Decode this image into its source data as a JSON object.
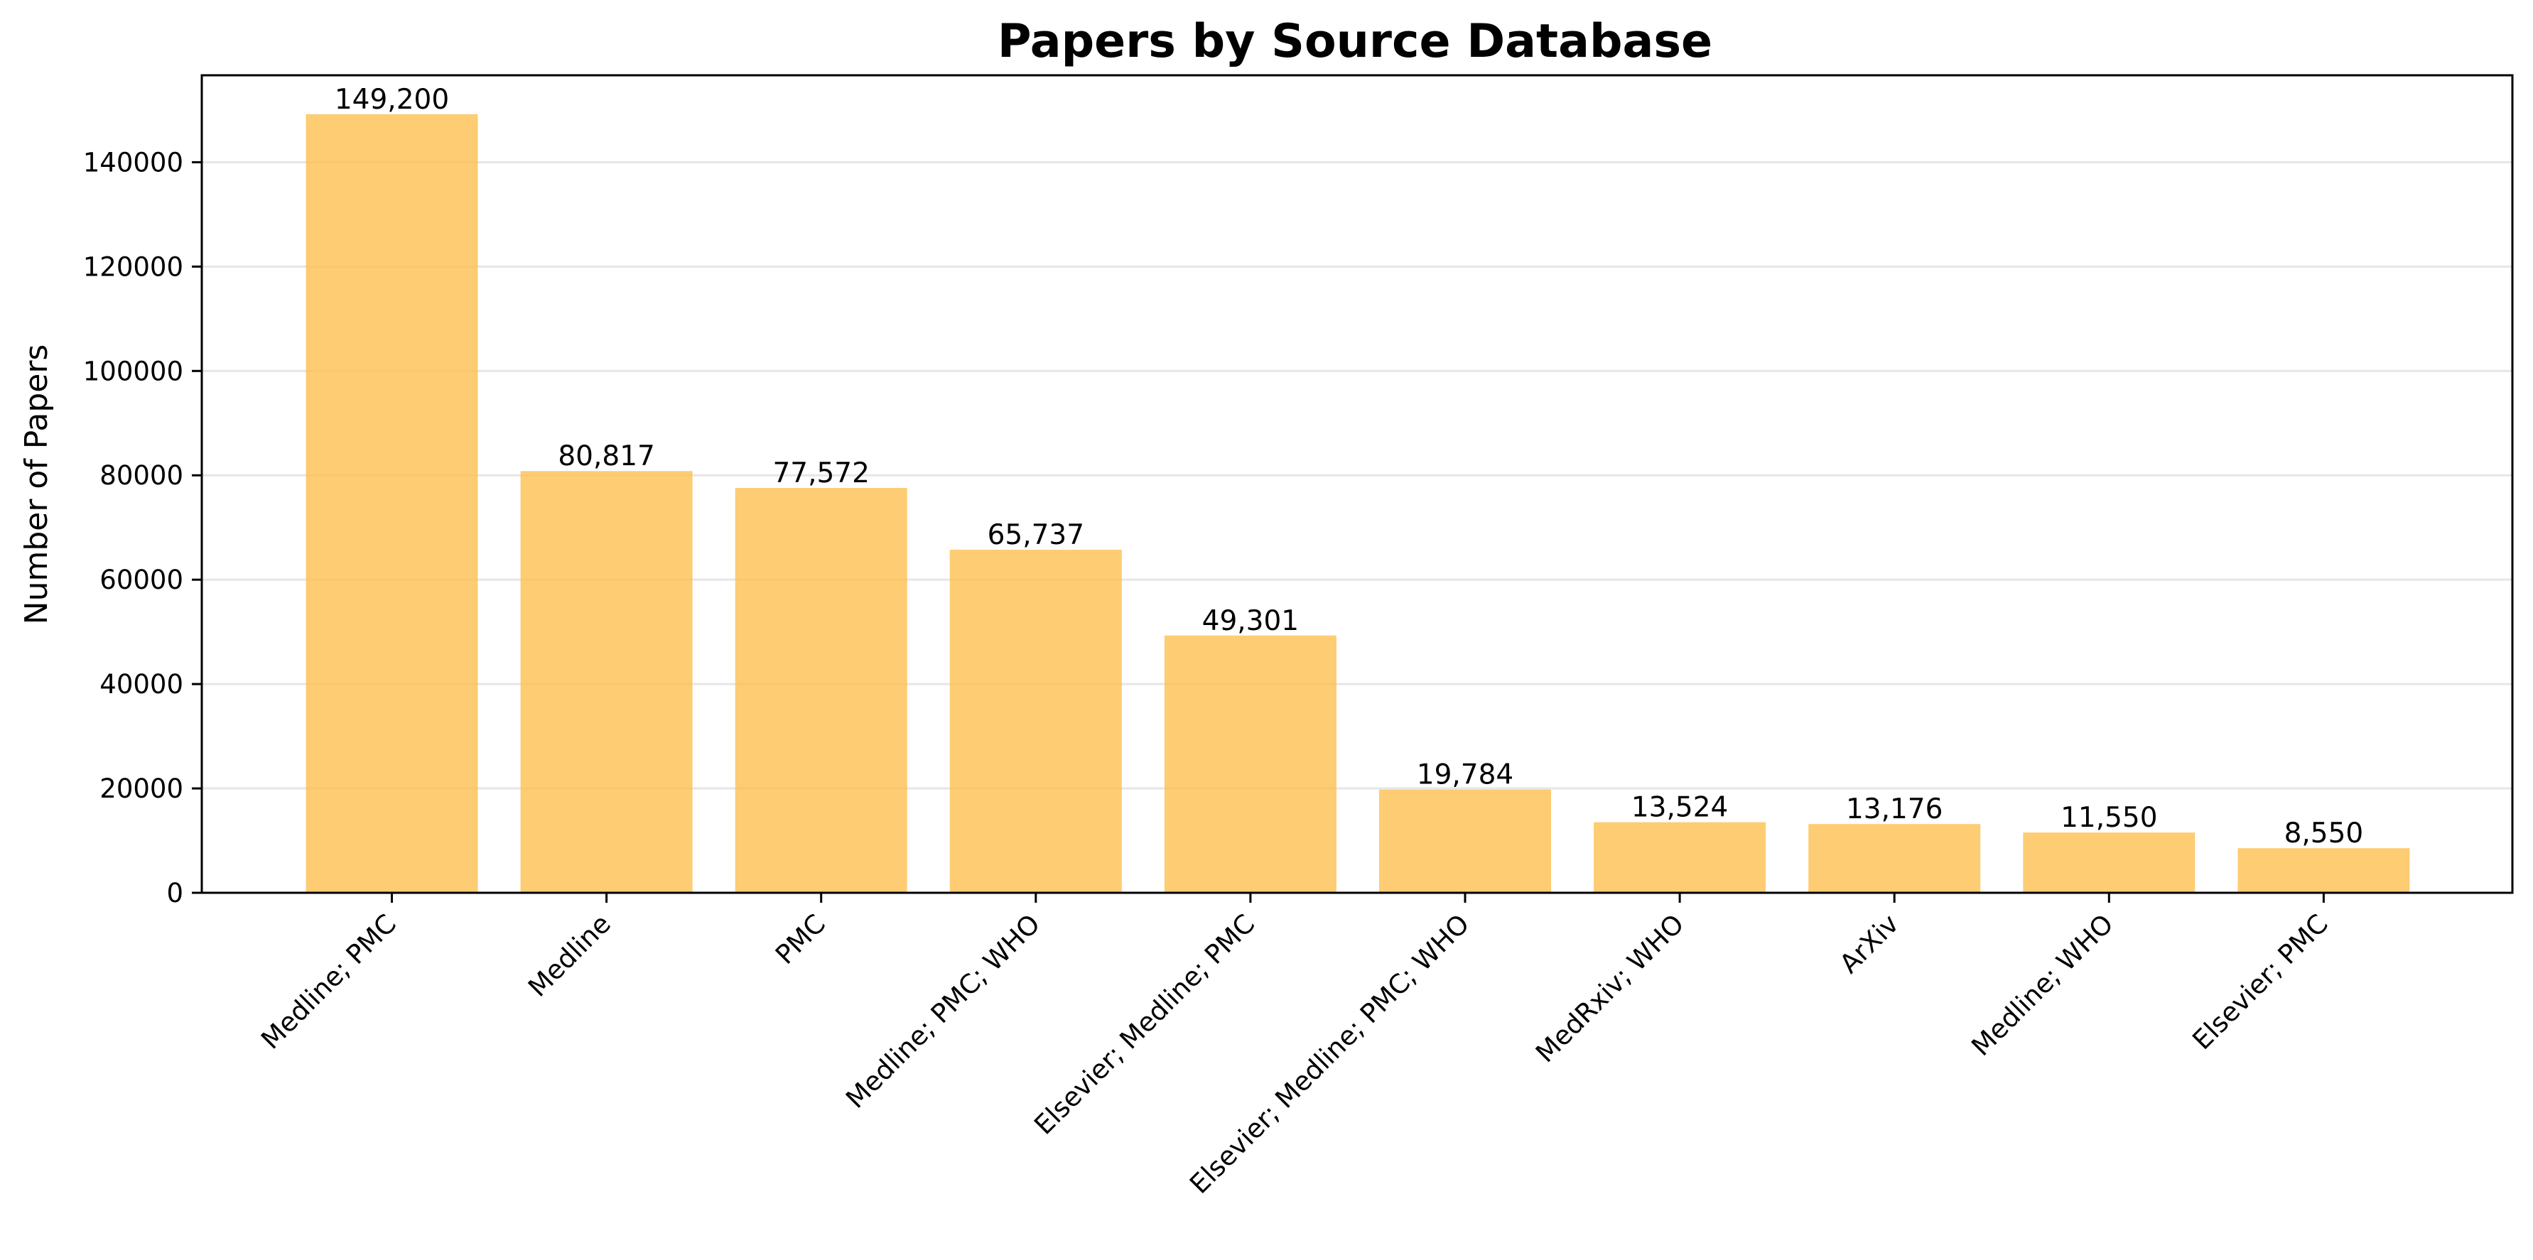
{
  "chart_data": {
    "type": "bar",
    "title": "Papers by Source Database",
    "xlabel": "",
    "ylabel": "Number of Papers",
    "categories": [
      "Medline; PMC",
      "Medline",
      "PMC",
      "Medline; PMC; WHO",
      "Elsevier; Medline; PMC",
      "Elsevier; Medline; PMC; WHO",
      "MedRxiv; WHO",
      "ArXiv",
      "Medline; WHO",
      "Elsevier; PMC"
    ],
    "values": [
      149200,
      80817,
      77572,
      65737,
      49301,
      19784,
      13524,
      13176,
      11550,
      8550
    ],
    "value_labels": [
      "149,200",
      "80,817",
      "77,572",
      "65,737",
      "49,301",
      "19,784",
      "13,524",
      "13,176",
      "11,550",
      "8,550"
    ],
    "ylim": [
      0,
      156660
    ],
    "yticks": [
      0,
      20000,
      40000,
      60000,
      80000,
      100000,
      120000,
      140000
    ],
    "ytick_labels": [
      "0",
      "20000",
      "40000",
      "60000",
      "80000",
      "100000",
      "120000",
      "140000"
    ],
    "grid": "horizontal",
    "legend": "none",
    "bar_color": "#fcbf50",
    "bar_opacity": 0.8
  }
}
